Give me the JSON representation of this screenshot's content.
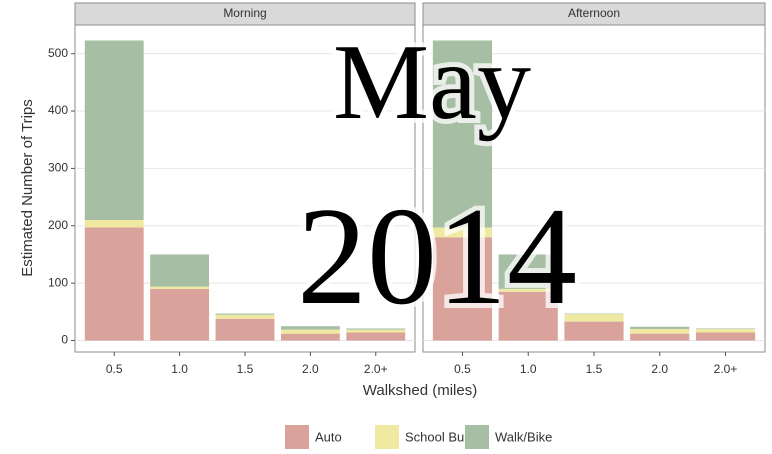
{
  "chart_data": [
    {
      "type": "bar",
      "stacked": true,
      "title": "Morning",
      "categories": [
        "0.5",
        "1.0",
        "1.5",
        "2.0",
        "2.0+"
      ],
      "series": [
        {
          "name": "Auto",
          "color": "#d9a39b",
          "values": [
            197,
            90,
            38,
            12,
            14
          ]
        },
        {
          "name": "School Bus",
          "color": "#f0e9a2",
          "values": [
            13,
            4,
            7,
            7,
            5
          ]
        },
        {
          "name": "Walk/Bike",
          "color": "#a6bea4",
          "values": [
            313,
            56,
            2,
            6,
            2
          ]
        }
      ],
      "ylim": [
        -20,
        550
      ],
      "yticks": [
        0,
        100,
        200,
        300,
        400,
        500
      ],
      "grid": true,
      "xlabel": "Walkshed (miles)",
      "ylabel": "Estimated Number of Trips"
    },
    {
      "type": "bar",
      "stacked": true,
      "title": "Afternoon",
      "categories": [
        "0.5",
        "1.0",
        "1.5",
        "2.0",
        "2.0+"
      ],
      "series": [
        {
          "name": "Auto",
          "color": "#d9a39b",
          "values": [
            180,
            85,
            33,
            12,
            14
          ]
        },
        {
          "name": "School Bus",
          "color": "#f0e9a2",
          "values": [
            17,
            5,
            13,
            8,
            6
          ]
        },
        {
          "name": "Walk/Bike",
          "color": "#a6bea4",
          "values": [
            326,
            60,
            1,
            4,
            1
          ]
        }
      ],
      "ylim": [
        -20,
        550
      ],
      "yticks": [
        0,
        100,
        200,
        300,
        400,
        500
      ],
      "grid": true
    }
  ],
  "overlay": [
    "May",
    "2014"
  ]
}
